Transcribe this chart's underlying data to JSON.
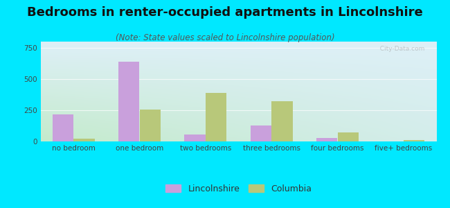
{
  "title": "Bedrooms in renter-occupied apartments in Lincolnshire",
  "subtitle": "(Note: State values scaled to Lincolnshire population)",
  "categories": [
    "no bedroom",
    "one bedroom",
    "two bedrooms",
    "three bedrooms",
    "four bedrooms",
    "five+ bedrooms"
  ],
  "lincolnshire_values": [
    215,
    640,
    55,
    130,
    30,
    2
  ],
  "columbia_values": [
    25,
    255,
    390,
    320,
    70,
    12
  ],
  "lincolnshire_color": "#c9a0dc",
  "columbia_color": "#b8c87a",
  "background_outer": "#00e8ff",
  "grad_top_left": "#c8ead8",
  "grad_top_right": "#d0eaf2",
  "grad_bottom_left": "#c0e8c8",
  "grad_bottom_right": "#cce8f0",
  "ylim": [
    0,
    800
  ],
  "yticks": [
    0,
    250,
    500,
    750
  ],
  "bar_width": 0.32,
  "title_fontsize": 13,
  "subtitle_fontsize": 8.5,
  "tick_fontsize": 7.5,
  "legend_fontsize": 9
}
